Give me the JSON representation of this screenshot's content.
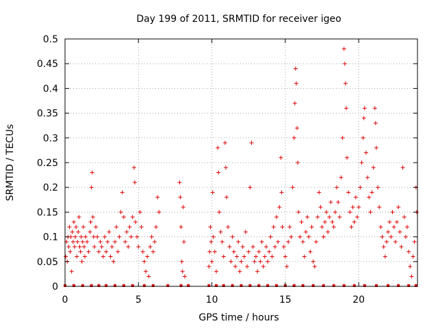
{
  "chart_data": {
    "type": "scatter",
    "title": "Day 199 of 2011, SRMTID for receiver igeo",
    "xlabel": "GPS time / hours",
    "ylabel": "SRMTID / TECUs",
    "xlim": [
      0,
      24
    ],
    "ylim": [
      0,
      0.5
    ],
    "xticks": [
      0,
      5,
      10,
      15,
      20
    ],
    "xtick_labels": [
      "0",
      "5",
      "10",
      "15",
      "20"
    ],
    "yticks": [
      0,
      0.05,
      0.1,
      0.15,
      0.2,
      0.25,
      0.3,
      0.35,
      0.4,
      0.45,
      0.5
    ],
    "ytick_labels": [
      "0",
      "0.05",
      "0.1",
      "0.15",
      "0.2",
      "0.25",
      "0.3",
      "0.35",
      "0.4",
      "0.45",
      "0.5"
    ],
    "grid": true,
    "marker": "plus",
    "series": [
      {
        "name": "SRMTID",
        "color": "#e00000",
        "points": [
          [
            0.05,
            0.06
          ],
          [
            0.1,
            0.09
          ],
          [
            0.15,
            0.05
          ],
          [
            0.2,
            0.1
          ],
          [
            0.25,
            0.08
          ],
          [
            0.3,
            0.12
          ],
          [
            0.35,
            0.07
          ],
          [
            0.4,
            0.1
          ],
          [
            0.45,
            0.03
          ],
          [
            0.5,
            0.11
          ],
          [
            0.55,
            0.09
          ],
          [
            0.6,
            0.13
          ],
          [
            0.65,
            0.08
          ],
          [
            0.7,
            0.1
          ],
          [
            0.75,
            0.12
          ],
          [
            0.8,
            0.06
          ],
          [
            0.85,
            0.09
          ],
          [
            0.9,
            0.11
          ],
          [
            0.95,
            0.14
          ],
          [
            1.0,
            0.08
          ],
          [
            1.05,
            0.07
          ],
          [
            1.1,
            0.1
          ],
          [
            1.15,
            0.05
          ],
          [
            1.2,
            0.09
          ],
          [
            1.25,
            0.12
          ],
          [
            1.3,
            0.08
          ],
          [
            1.35,
            0.06
          ],
          [
            1.4,
            0.1
          ],
          [
            1.5,
            0.09
          ],
          [
            1.6,
            0.07
          ],
          [
            1.7,
            0.11
          ],
          [
            1.75,
            0.13
          ],
          [
            1.8,
            0.2
          ],
          [
            1.85,
            0.23
          ],
          [
            1.9,
            0.14
          ],
          [
            1.95,
            0.1
          ],
          [
            2.0,
            0.08
          ],
          [
            2.1,
            0.12
          ],
          [
            2.2,
            0.1
          ],
          [
            2.3,
            0.07
          ],
          [
            2.4,
            0.09
          ],
          [
            2.5,
            0.08
          ],
          [
            2.6,
            0.06
          ],
          [
            2.7,
            0.1
          ],
          [
            2.8,
            0.07
          ],
          [
            2.9,
            0.09
          ],
          [
            3.0,
            0.11
          ],
          [
            3.1,
            0.06
          ],
          [
            3.2,
            0.08
          ],
          [
            3.3,
            0.05
          ],
          [
            3.4,
            0.09
          ],
          [
            3.5,
            0.12
          ],
          [
            3.6,
            0.07
          ],
          [
            3.7,
            0.1
          ],
          [
            3.8,
            0.15
          ],
          [
            3.9,
            0.19
          ],
          [
            4.0,
            0.14
          ],
          [
            4.1,
            0.09
          ],
          [
            4.2,
            0.11
          ],
          [
            4.3,
            0.08
          ],
          [
            4.4,
            0.12
          ],
          [
            4.5,
            0.1
          ],
          [
            4.6,
            0.14
          ],
          [
            4.7,
            0.24
          ],
          [
            4.75,
            0.21
          ],
          [
            4.8,
            0.13
          ],
          [
            4.9,
            0.1
          ],
          [
            5.0,
            0.08
          ],
          [
            5.1,
            0.15
          ],
          [
            5.2,
            0.12
          ],
          [
            5.3,
            0.07
          ],
          [
            5.4,
            0.05
          ],
          [
            5.5,
            0.03
          ],
          [
            5.6,
            0.06
          ],
          [
            5.7,
            0.02
          ],
          [
            5.8,
            0.08
          ],
          [
            5.9,
            0.1
          ],
          [
            6.0,
            0.07
          ],
          [
            6.1,
            0.09
          ],
          [
            6.2,
            0.12
          ],
          [
            6.3,
            0.18
          ],
          [
            6.4,
            0.15
          ],
          [
            7.8,
            0.21
          ],
          [
            7.85,
            0.18
          ],
          [
            7.9,
            0.12
          ],
          [
            7.95,
            0.05
          ],
          [
            8.0,
            0.03
          ],
          [
            8.05,
            0.16
          ],
          [
            8.1,
            0.09
          ],
          [
            8.15,
            0.02
          ],
          [
            9.8,
            0.04
          ],
          [
            9.85,
            0.07
          ],
          [
            9.9,
            0.12
          ],
          [
            9.95,
            0.09
          ],
          [
            10.0,
            0.05
          ],
          [
            10.05,
            0.19
          ],
          [
            10.1,
            0.1
          ],
          [
            10.2,
            0.07
          ],
          [
            10.3,
            0.03
          ],
          [
            10.4,
            0.28
          ],
          [
            10.45,
            0.23
          ],
          [
            10.5,
            0.15
          ],
          [
            10.6,
            0.11
          ],
          [
            10.7,
            0.09
          ],
          [
            10.8,
            0.06
          ],
          [
            10.9,
            0.29
          ],
          [
            10.95,
            0.24
          ],
          [
            11.0,
            0.18
          ],
          [
            11.1,
            0.12
          ],
          [
            11.2,
            0.08
          ],
          [
            11.3,
            0.05
          ],
          [
            11.4,
            0.1
          ],
          [
            11.5,
            0.07
          ],
          [
            11.6,
            0.04
          ],
          [
            11.7,
            0.06
          ],
          [
            11.8,
            0.09
          ],
          [
            11.9,
            0.03
          ],
          [
            12.0,
            0.05
          ],
          [
            12.1,
            0.08
          ],
          [
            12.2,
            0.06
          ],
          [
            12.3,
            0.11
          ],
          [
            12.4,
            0.04
          ],
          [
            12.5,
            0.07
          ],
          [
            12.6,
            0.2
          ],
          [
            12.7,
            0.29
          ],
          [
            12.8,
            0.08
          ],
          [
            12.9,
            0.05
          ],
          [
            13.0,
            0.06
          ],
          [
            13.1,
            0.03
          ],
          [
            13.2,
            0.07
          ],
          [
            13.3,
            0.05
          ],
          [
            13.4,
            0.09
          ],
          [
            13.5,
            0.04
          ],
          [
            13.6,
            0.06
          ],
          [
            13.7,
            0.08
          ],
          [
            13.8,
            0.05
          ],
          [
            13.9,
            0.07
          ],
          [
            14.0,
            0.1
          ],
          [
            14.1,
            0.06
          ],
          [
            14.2,
            0.12
          ],
          [
            14.3,
            0.08
          ],
          [
            14.4,
            0.14
          ],
          [
            14.5,
            0.09
          ],
          [
            14.6,
            0.16
          ],
          [
            14.7,
            0.26
          ],
          [
            14.75,
            0.19
          ],
          [
            14.8,
            0.12
          ],
          [
            14.9,
            0.08
          ],
          [
            15.0,
            0.06
          ],
          [
            15.1,
            0.04
          ],
          [
            15.2,
            0.09
          ],
          [
            15.3,
            0.12
          ],
          [
            15.4,
            0.1
          ],
          [
            15.5,
            0.2
          ],
          [
            15.6,
            0.3
          ],
          [
            15.65,
            0.37
          ],
          [
            15.7,
            0.44
          ],
          [
            15.75,
            0.41
          ],
          [
            15.8,
            0.32
          ],
          [
            15.85,
            0.25
          ],
          [
            15.9,
            0.15
          ],
          [
            16.0,
            0.1
          ],
          [
            16.1,
            0.13
          ],
          [
            16.2,
            0.09
          ],
          [
            16.3,
            0.06
          ],
          [
            16.4,
            0.11
          ],
          [
            16.5,
            0.14
          ],
          [
            16.6,
            0.1
          ],
          [
            16.7,
            0.07
          ],
          [
            16.8,
            0.12
          ],
          [
            16.9,
            0.05
          ],
          [
            17.0,
            0.04
          ],
          [
            17.1,
            0.09
          ],
          [
            17.2,
            0.14
          ],
          [
            17.3,
            0.19
          ],
          [
            17.4,
            0.16
          ],
          [
            17.5,
            0.12
          ],
          [
            17.6,
            0.1
          ],
          [
            17.7,
            0.13
          ],
          [
            17.8,
            0.15
          ],
          [
            17.9,
            0.11
          ],
          [
            18.0,
            0.14
          ],
          [
            18.1,
            0.17
          ],
          [
            18.2,
            0.13
          ],
          [
            18.3,
            0.12
          ],
          [
            18.4,
            0.15
          ],
          [
            18.5,
            0.2
          ],
          [
            18.6,
            0.17
          ],
          [
            18.7,
            0.14
          ],
          [
            18.8,
            0.22
          ],
          [
            18.9,
            0.3
          ],
          [
            19.0,
            0.48
          ],
          [
            19.05,
            0.45
          ],
          [
            19.1,
            0.41
          ],
          [
            19.15,
            0.36
          ],
          [
            19.2,
            0.26
          ],
          [
            19.3,
            0.19
          ],
          [
            19.4,
            0.15
          ],
          [
            19.5,
            0.12
          ],
          [
            19.6,
            0.16
          ],
          [
            19.7,
            0.13
          ],
          [
            19.8,
            0.18
          ],
          [
            19.9,
            0.14
          ],
          [
            20.0,
            0.16
          ],
          [
            20.1,
            0.2
          ],
          [
            20.2,
            0.25
          ],
          [
            20.3,
            0.3
          ],
          [
            20.35,
            0.34
          ],
          [
            20.4,
            0.36
          ],
          [
            20.5,
            0.27
          ],
          [
            20.6,
            0.22
          ],
          [
            20.7,
            0.18
          ],
          [
            20.8,
            0.15
          ],
          [
            20.9,
            0.19
          ],
          [
            21.0,
            0.24
          ],
          [
            21.1,
            0.36
          ],
          [
            21.15,
            0.33
          ],
          [
            21.2,
            0.28
          ],
          [
            21.3,
            0.2
          ],
          [
            21.4,
            0.16
          ],
          [
            21.5,
            0.12
          ],
          [
            21.6,
            0.1
          ],
          [
            21.7,
            0.08
          ],
          [
            21.8,
            0.06
          ],
          [
            21.9,
            0.09
          ],
          [
            22.0,
            0.11
          ],
          [
            22.1,
            0.13
          ],
          [
            22.2,
            0.1
          ],
          [
            22.3,
            0.15
          ],
          [
            22.4,
            0.12
          ],
          [
            22.5,
            0.09
          ],
          [
            22.6,
            0.13
          ],
          [
            22.7,
            0.16
          ],
          [
            22.8,
            0.11
          ],
          [
            22.9,
            0.08
          ],
          [
            23.0,
            0.24
          ],
          [
            23.1,
            0.14
          ],
          [
            23.2,
            0.1
          ],
          [
            23.3,
            0.12
          ],
          [
            23.4,
            0.07
          ],
          [
            23.5,
            0.04
          ],
          [
            23.6,
            0.02
          ],
          [
            23.7,
            0.06
          ],
          [
            23.8,
            0.09
          ],
          [
            23.9,
            0.2
          ],
          [
            23.95,
            0.15
          ]
        ],
        "baseline_x": [
          0.0,
          0.6,
          1.2,
          1.8,
          2.3,
          2.8,
          3.4,
          4.0,
          4.6,
          5.4,
          6.0,
          7.0,
          7.9,
          8.4,
          9.8,
          10.3,
          10.8,
          11.4,
          12.0,
          12.6,
          13.2,
          13.8,
          14.4,
          15.0,
          15.6,
          16.2,
          16.9,
          17.6,
          18.3,
          19.0,
          19.7,
          20.4,
          21.2,
          22.0,
          22.7,
          23.4,
          23.9
        ]
      }
    ]
  }
}
